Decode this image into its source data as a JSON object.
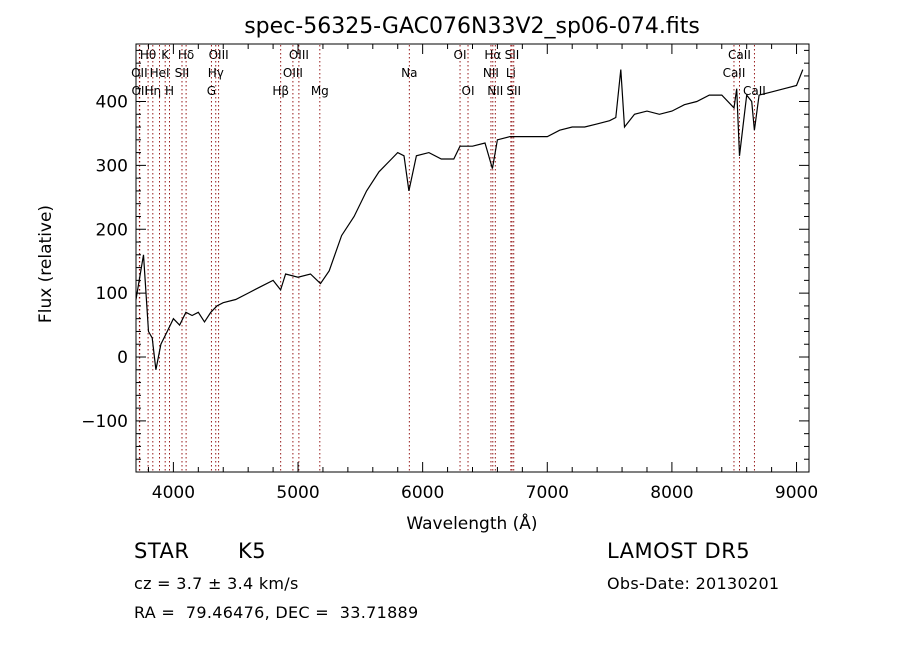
{
  "chart_data": {
    "type": "line",
    "title": "spec-56325-GAC076N33V2_sp06-074.fits",
    "xlabel": "Wavelength (Å)",
    "ylabel": "Flux (relative)",
    "xlim": [
      3700,
      9100
    ],
    "ylim": [
      -180,
      490
    ],
    "xticks": [
      4000,
      5000,
      6000,
      7000,
      8000,
      9000
    ],
    "yticks": [
      -100,
      0,
      100,
      200,
      300,
      400
    ],
    "grid": false,
    "line_color": "#000000",
    "marker_color": "#8b0000",
    "series": [
      {
        "x": [
          3700,
          3760,
          3800,
          3830,
          3860,
          3900,
          3950,
          4000,
          4050,
          4100,
          4150,
          4200,
          4250,
          4300,
          4350,
          4400,
          4500,
          4600,
          4700,
          4800,
          4860,
          4900,
          5000,
          5100,
          5180,
          5250,
          5350,
          5450,
          5550,
          5650,
          5750,
          5800,
          5850,
          5890,
          5950,
          6050,
          6150,
          6250,
          6300,
          6400,
          6500,
          6560,
          6600,
          6700,
          6800,
          6900,
          7000,
          7100,
          7200,
          7300,
          7400,
          7500,
          7550,
          7590,
          7620,
          7700,
          7800,
          7900,
          8000,
          8100,
          8200,
          8300,
          8400,
          8498,
          8520,
          8542,
          8570,
          8600,
          8640,
          8662,
          8700,
          8800,
          8900,
          9000,
          9050
        ],
        "y": [
          90,
          160,
          40,
          30,
          -20,
          20,
          40,
          60,
          50,
          70,
          65,
          70,
          55,
          70,
          80,
          85,
          90,
          100,
          110,
          120,
          105,
          130,
          125,
          130,
          115,
          135,
          190,
          220,
          260,
          290,
          310,
          320,
          315,
          260,
          315,
          320,
          310,
          310,
          330,
          330,
          335,
          295,
          340,
          345,
          345,
          345,
          345,
          355,
          360,
          360,
          365,
          370,
          375,
          450,
          360,
          380,
          385,
          380,
          385,
          395,
          400,
          410,
          410,
          390,
          420,
          315,
          360,
          410,
          400,
          355,
          410,
          415,
          420,
          425,
          450
        ]
      }
    ],
    "line_markers": [
      {
        "label": "Hθ",
        "x": 3797,
        "row": 0
      },
      {
        "label": "OII",
        "x": 3727,
        "row": 1
      },
      {
        "label": "OII",
        "x": 3730,
        "row": 2
      },
      {
        "label": "Hη",
        "x": 3835,
        "row": 2
      },
      {
        "label": "K",
        "x": 3934,
        "row": 0
      },
      {
        "label": "HeI",
        "x": 3889,
        "row": 1
      },
      {
        "label": "H",
        "x": 3969,
        "row": 2
      },
      {
        "label": "Hδ",
        "x": 4102,
        "row": 0
      },
      {
        "label": "SII",
        "x": 4069,
        "row": 1
      },
      {
        "label": "OIII",
        "x": 4363,
        "row": 0
      },
      {
        "label": "Hγ",
        "x": 4340,
        "row": 1
      },
      {
        "label": "G",
        "x": 4305,
        "row": 2
      },
      {
        "label": "Hβ",
        "x": 4861,
        "row": 2
      },
      {
        "label": "OIII",
        "x": 5007,
        "row": 0
      },
      {
        "label": "OIII",
        "x": 4959,
        "row": 1
      },
      {
        "label": "Mg",
        "x": 5175,
        "row": 2
      },
      {
        "label": "Na",
        "x": 5893,
        "row": 1
      },
      {
        "label": "OI",
        "x": 6300,
        "row": 0
      },
      {
        "label": "OI",
        "x": 6364,
        "row": 2
      },
      {
        "label": "Hα",
        "x": 6563,
        "row": 0
      },
      {
        "label": "SII",
        "x": 6717,
        "row": 0
      },
      {
        "label": "NII",
        "x": 6548,
        "row": 1
      },
      {
        "label": "Li",
        "x": 6708,
        "row": 1
      },
      {
        "label": "NII",
        "x": 6583,
        "row": 2
      },
      {
        "label": "SII",
        "x": 6731,
        "row": 2
      },
      {
        "label": "CaII",
        "x": 8542,
        "row": 0
      },
      {
        "label": "CaII",
        "x": 8498,
        "row": 1
      },
      {
        "label": "CaII",
        "x": 8662,
        "row": 2
      }
    ]
  },
  "info": {
    "class_label": "STAR",
    "subclass": "K5",
    "survey": "LAMOST DR5",
    "redshift": "cz = 3.7 ± 3.4 km/s",
    "obs_date": "Obs-Date: 20130201",
    "coords": "RA =  79.46476, DEC =  33.71889"
  }
}
